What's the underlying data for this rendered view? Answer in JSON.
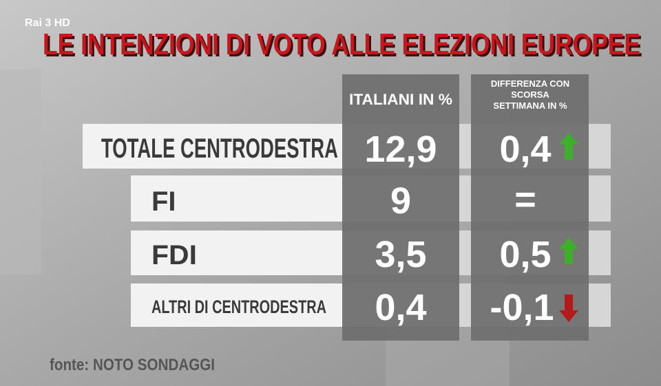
{
  "logo": "Rai 3 HD",
  "title": "LE INTENZIONI DI VOTO ALLE ELEZIONI EUROPEE",
  "table": {
    "headers": [
      "ITALIANI IN %",
      "DIFFERENZA CON SCORSA SETTIMANA IN %"
    ],
    "rows": [
      [
        "TOTALE CENTRODESTRA",
        "12,9",
        "0,4"
      ],
      [
        "FI",
        "9",
        "="
      ],
      [
        "FDI",
        "3,5",
        "0,5"
      ],
      [
        "ALTRI DI CENTRODESTRA",
        "0,4",
        "-0,1"
      ]
    ]
  },
  "source": "fonte: NOTO SONDAGGI"
}
